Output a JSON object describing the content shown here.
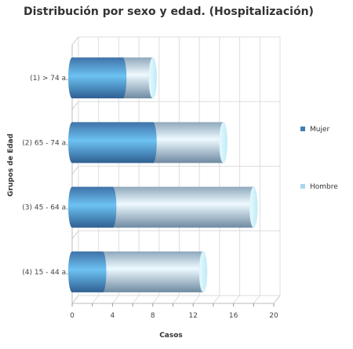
{
  "chart_data": {
    "type": "bar",
    "orientation": "horizontal",
    "stacked": true,
    "style": "3d-cylinder",
    "title": "Distribución por sexo y edad. (Hospitalización)",
    "xlabel": "Casos",
    "ylabel": "Grupos de Edad",
    "categories": [
      "(1) > 74 a.",
      "(2) 65 - 74 a.",
      "(3) 45 - 64 a.",
      "(4) 15 - 44 a."
    ],
    "xlim": [
      0,
      20
    ],
    "xticks": [
      0,
      2,
      4,
      6,
      8,
      10,
      12,
      14,
      16,
      18,
      20
    ],
    "xtick_labels": [
      "0",
      "",
      "4",
      "",
      "8",
      "",
      "12",
      "",
      "16",
      "",
      "20"
    ],
    "grid": true,
    "legend_position": "right",
    "series": [
      {
        "name": "Mujer",
        "values": [
          5,
          8,
          4,
          3
        ],
        "color": "#3f7fb8"
      },
      {
        "name": "Hombre",
        "values": [
          3,
          7,
          14,
          10
        ],
        "color": "#a7d8f0"
      }
    ]
  }
}
